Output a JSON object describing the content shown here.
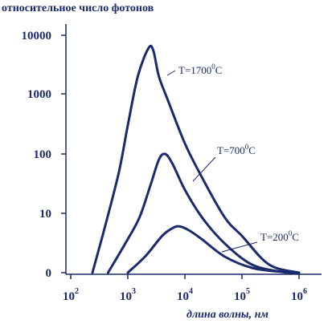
{
  "chart_data": {
    "type": "line",
    "ylabel": "относительное число фотонов",
    "xlabel": "длина волны, нм",
    "x_scale": "log",
    "xlim": [
      100,
      1000000
    ],
    "y_ticks": [
      "0",
      "10",
      "100",
      "1000",
      "10000"
    ],
    "x_ticks": [
      {
        "base": "10",
        "exp": "2"
      },
      {
        "base": "10",
        "exp": "3"
      },
      {
        "base": "10",
        "exp": "4"
      },
      {
        "base": "10",
        "exp": "5"
      },
      {
        "base": "10",
        "exp": "6"
      }
    ],
    "colors": {
      "axis": "#1a2a6c",
      "curve": "#1a2a6c",
      "text": "#1a2a6c"
    },
    "series": [
      {
        "name": "T=1700 C",
        "label": {
          "prefix": "T=1700",
          "sup": "0",
          "suffix": "C"
        },
        "points": [
          [
            240,
            0
          ],
          [
            400,
            5
          ],
          [
            700,
            50
          ],
          [
            1000,
            300
          ],
          [
            1500,
            2000
          ],
          [
            2300,
            6000
          ],
          [
            2800,
            5500
          ],
          [
            3500,
            2000
          ],
          [
            5000,
            800
          ],
          [
            10000,
            150
          ],
          [
            20000,
            40
          ],
          [
            50000,
            8
          ],
          [
            100000,
            3
          ],
          [
            300000,
            0.5
          ],
          [
            1000000,
            0
          ]
        ]
      },
      {
        "name": "T=700 C",
        "label": {
          "prefix": "T=700",
          "sup": "0",
          "suffix": "C"
        },
        "points": [
          [
            450,
            0
          ],
          [
            900,
            2
          ],
          [
            1600,
            8
          ],
          [
            2500,
            30
          ],
          [
            3500,
            80
          ],
          [
            4500,
            100
          ],
          [
            6000,
            70
          ],
          [
            10000,
            25
          ],
          [
            20000,
            8
          ],
          [
            50000,
            2
          ],
          [
            150000,
            0.5
          ],
          [
            500000,
            0.05
          ],
          [
            1000000,
            0
          ]
        ]
      },
      {
        "name": "T=200 C",
        "label": {
          "prefix": "T=200",
          "sup": "0",
          "suffix": "C"
        },
        "points": [
          [
            1000,
            0
          ],
          [
            2000,
            1
          ],
          [
            4000,
            3
          ],
          [
            6000,
            4.5
          ],
          [
            8000,
            5
          ],
          [
            12000,
            4
          ],
          [
            20000,
            2.5
          ],
          [
            50000,
            1
          ],
          [
            150000,
            0.3
          ],
          [
            500000,
            0.05
          ],
          [
            1000000,
            0
          ]
        ]
      }
    ],
    "grid": false
  }
}
